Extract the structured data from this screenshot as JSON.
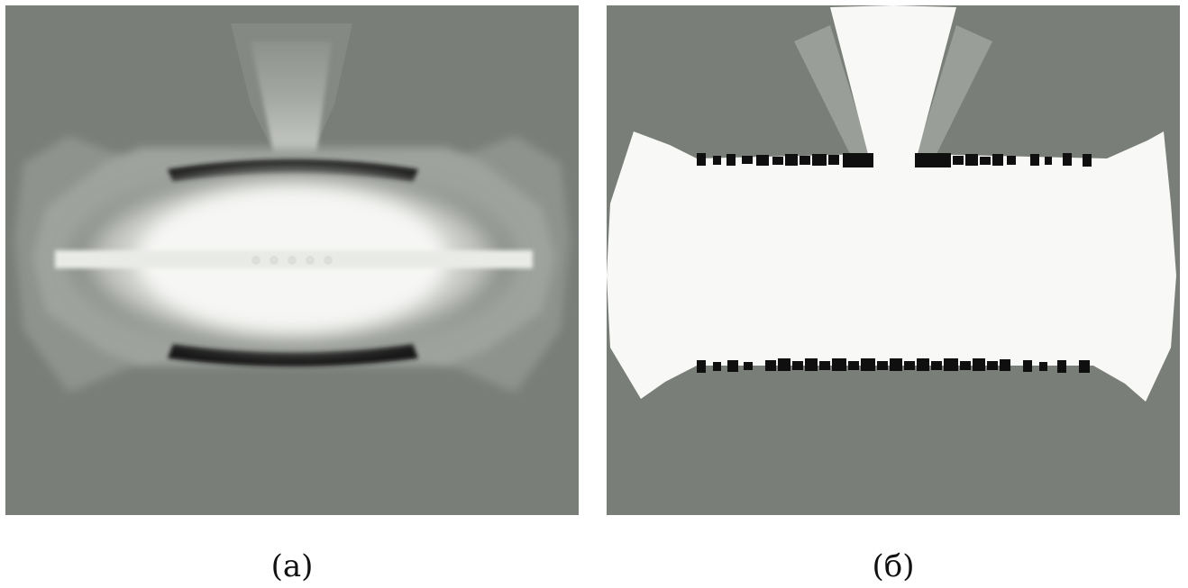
{
  "figure": {
    "panels": [
      {
        "caption": "(a)"
      },
      {
        "caption": "(б)"
      }
    ],
    "colors": {
      "background": "#7a7e79",
      "bright": "#f8f9f6",
      "dark": "#0e0f0e"
    }
  }
}
